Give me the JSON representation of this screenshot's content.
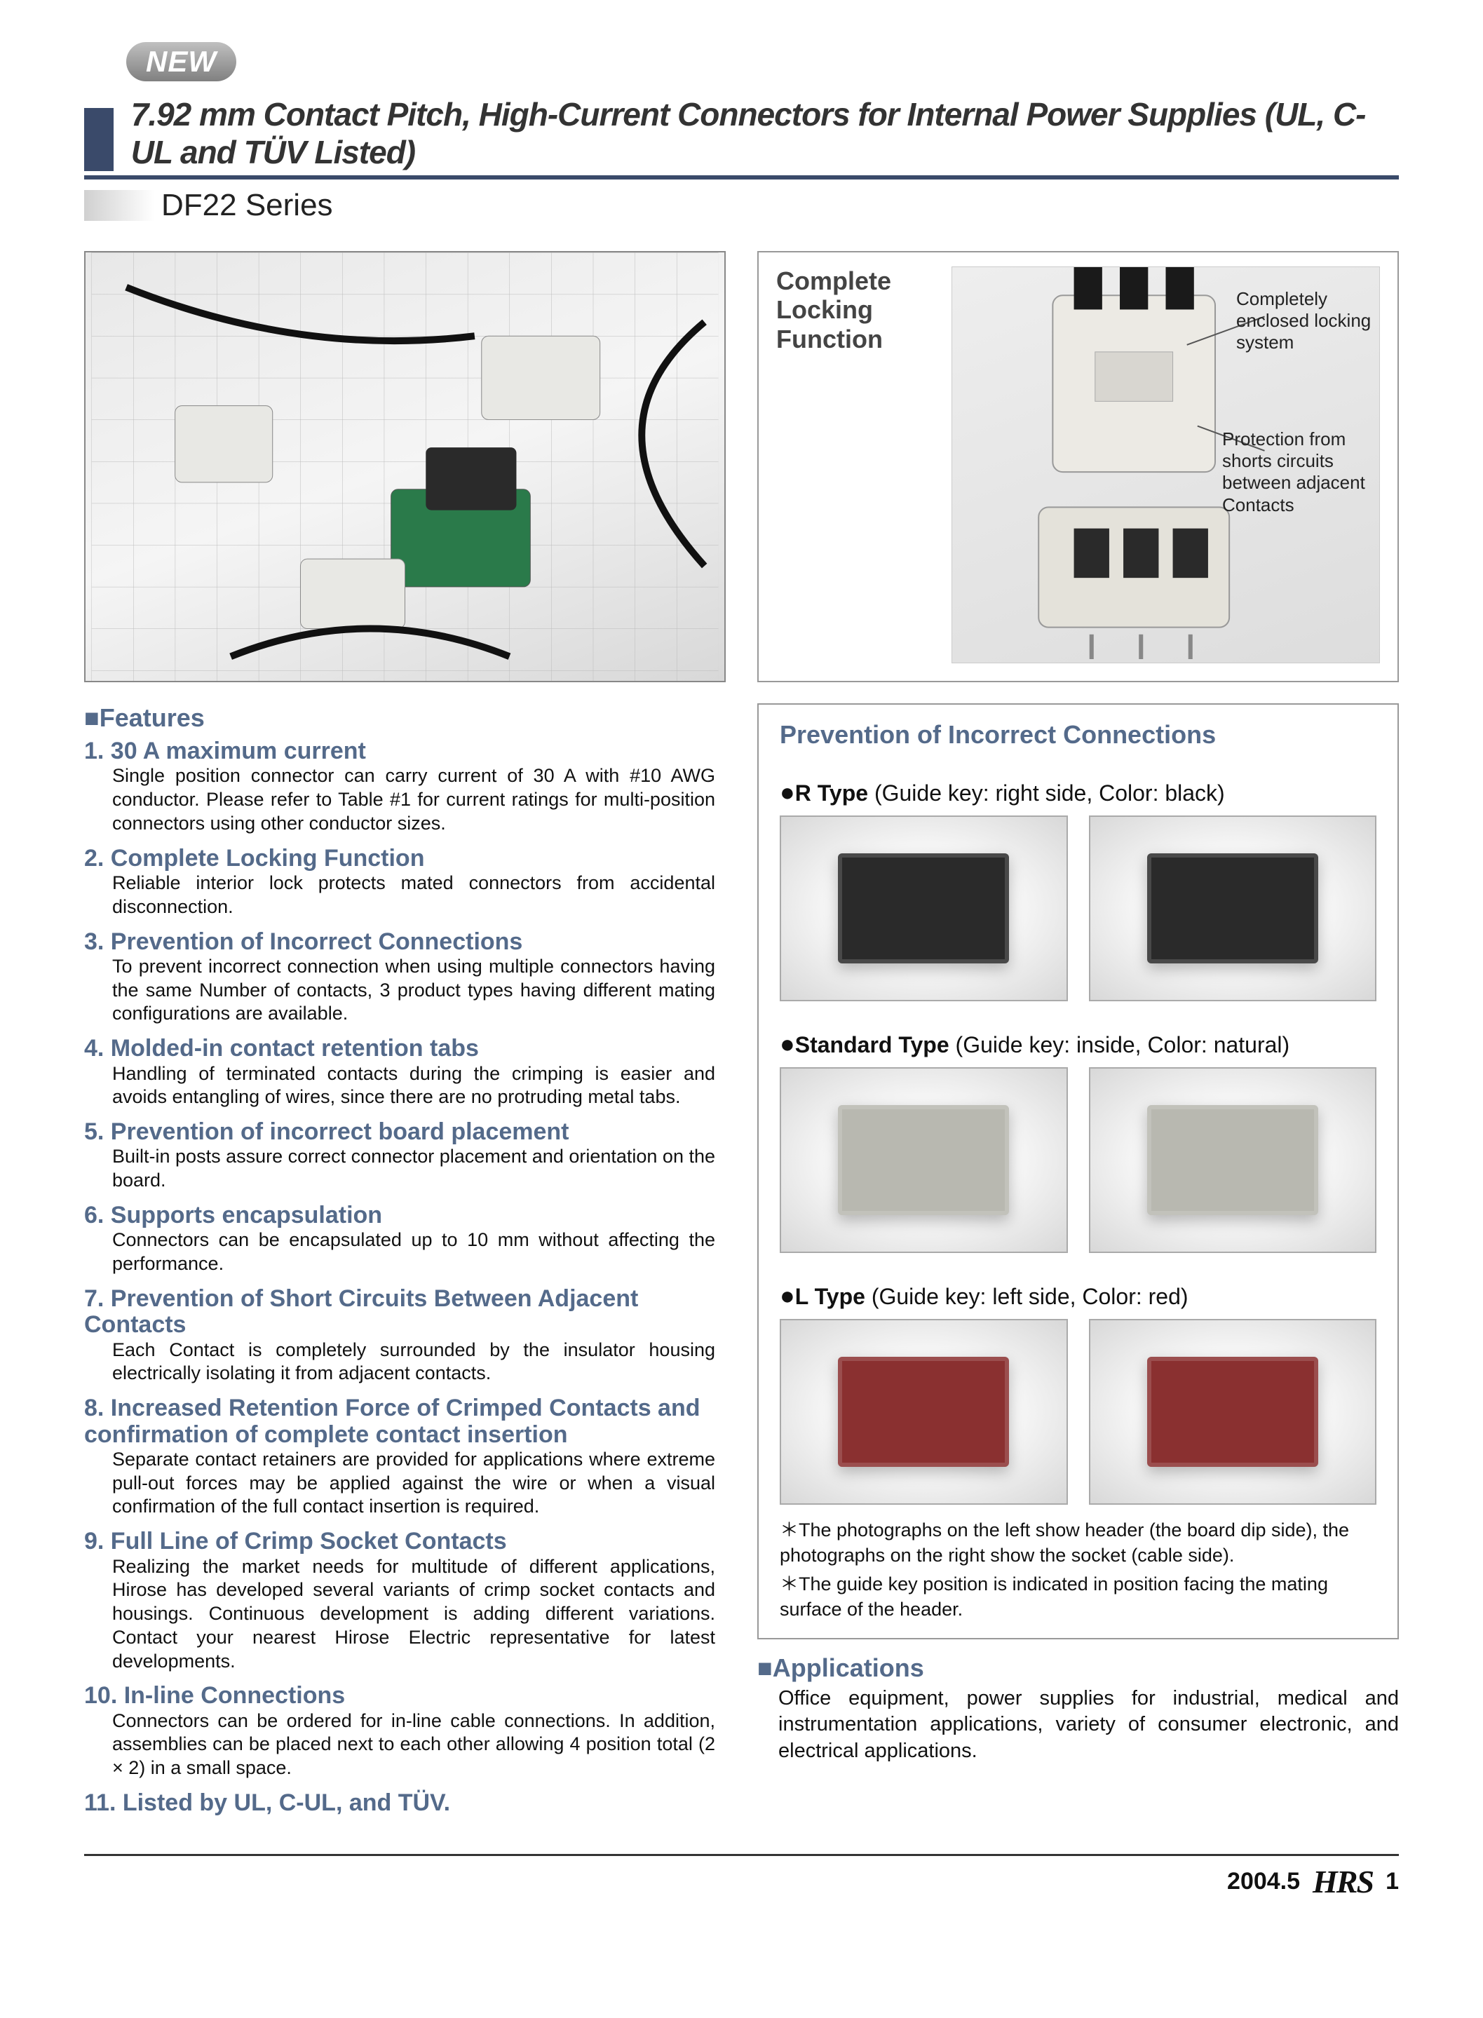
{
  "badge": "NEW",
  "title": "7.92 mm Contact Pitch, High-Current Connectors for Internal Power Supplies (UL, C-UL and TÜV Listed)",
  "series": "DF22 Series",
  "locking": {
    "title": "Complete Locking Function",
    "call1": "Completely enclosed locking system",
    "call2": "Protection from shorts circuits between adjacent Contacts"
  },
  "features_hdr": "Features",
  "features": [
    {
      "n": "1.",
      "t": "30 A maximum current",
      "d": "Single position connector can carry current of 30 A with #10 AWG conductor. Please refer to Table #1 for current ratings for multi-position connectors using other conductor sizes."
    },
    {
      "n": "2.",
      "t": "Complete Locking Function",
      "d": "Reliable interior lock protects mated connectors from accidental disconnection."
    },
    {
      "n": "3.",
      "t": "Prevention of Incorrect Connections",
      "d": "To prevent incorrect connection when using multiple connectors having the same Number of contacts, 3 product types having different mating configurations are available."
    },
    {
      "n": "4.",
      "t": "Molded-in contact retention tabs",
      "d": "Handling of terminated contacts during the crimping is easier and avoids entangling of wires, since there are no protruding metal tabs."
    },
    {
      "n": "5.",
      "t": "Prevention of incorrect board placement",
      "d": "Built-in posts assure correct connector placement and orientation on the board."
    },
    {
      "n": "6.",
      "t": "Supports encapsulation",
      "d": "Connectors can be encapsulated up to 10 mm without affecting the performance."
    },
    {
      "n": "7.",
      "t": "Prevention of Short Circuits Between Adjacent Contacts",
      "d": "Each Contact is completely surrounded by the insulator housing electrically isolating it from adjacent contacts."
    },
    {
      "n": "8.",
      "t": "Increased Retention Force of Crimped Contacts and confirmation of complete contact insertion",
      "d": "Separate contact retainers are provided for applications where extreme pull-out forces may be applied against the wire or when a visual confirmation of the full contact insertion is required."
    },
    {
      "n": "9.",
      "t": "Full Line of Crimp Socket Contacts",
      "d": "Realizing the market needs for multitude of different applications, Hirose has developed several variants of crimp socket contacts and housings. Continuous development is adding different variations. Contact your nearest Hirose Electric representative for latest developments."
    },
    {
      "n": "10.",
      "t": " In-line Connections",
      "d": "Connectors can be ordered for in-line cable connections. In addition, assemblies can be placed next to each other allowing 4 position total (2 × 2) in a small space."
    },
    {
      "n": "11.",
      "t": "Listed by UL, C-UL, and TÜV.",
      "d": ""
    }
  ],
  "prevention": {
    "title": "Prevention of Incorrect Connections",
    "types": [
      {
        "name": "R Type",
        "note": "(Guide key: right side, Color: black)",
        "color": "#2a2a2a"
      },
      {
        "name": "Standard Type",
        "note": "(Guide key: inside, Color: natural)",
        "color": "#b8b8b0"
      },
      {
        "name": "L Type",
        "note": "(Guide key: left side, Color: red)",
        "color": "#8a3030"
      }
    ],
    "foot1": "＊The photographs on the left show header (the board dip side), the photographs on the right show the socket (cable side).",
    "foot2": "＊The guide key position is indicated in position facing the mating surface of the header."
  },
  "apps_hdr": "Applications",
  "apps": "Office equipment, power supplies for industrial, medical and instrumentation applications, variety of consumer electronic, and electrical applications.",
  "footer": {
    "date": "2004.5",
    "logo": "HRS",
    "page": "1"
  },
  "colors": {
    "accent": "#546a8a",
    "rule": "#3a4a6a",
    "border": "#999999",
    "text": "#111111"
  }
}
